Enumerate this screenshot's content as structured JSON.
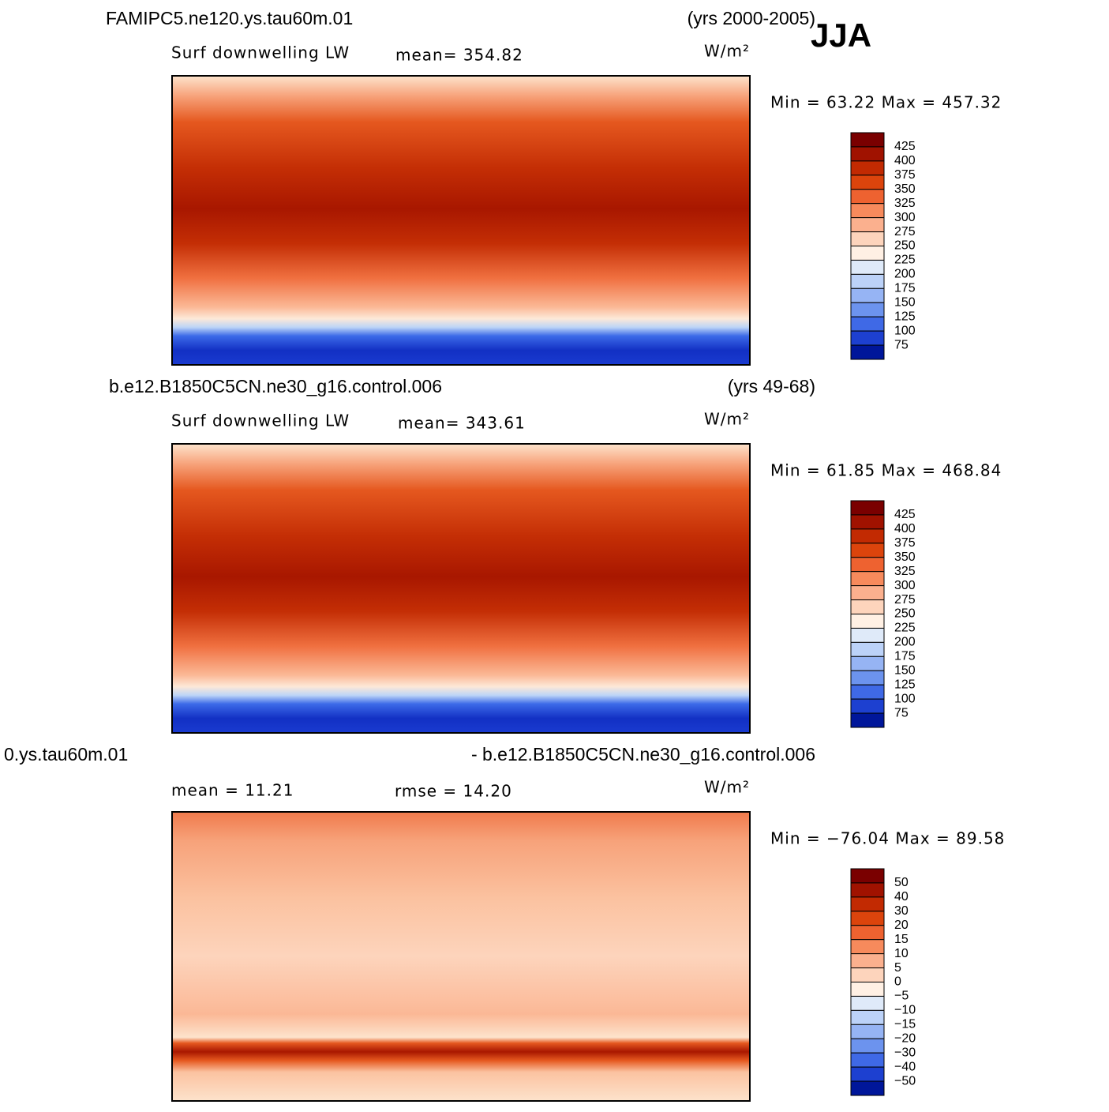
{
  "header": {
    "season": "JJA"
  },
  "palette": [
    "#7a0000",
    "#a01200",
    "#c22a02",
    "#dc440c",
    "#ee6230",
    "#f78a5c",
    "#fbb08e",
    "#fdd4bc",
    "#fff0e4",
    "#dfeaf9",
    "#bcd2f8",
    "#96b4f4",
    "#6c93ee",
    "#3f69e6",
    "#1d40d0",
    "#00169a"
  ],
  "panels": [
    {
      "case": "FAMIPC5.ne120.ys.tau60m.01",
      "years": "(yrs 2000-2005)",
      "stat_left": "Surf downwelling LW",
      "stat_mid": "mean= 354.82",
      "units": "W/m²",
      "minmax": "Min =  63.22 Max = 457.32",
      "colorbar": [
        "425",
        "400",
        "375",
        "350",
        "325",
        "300",
        "275",
        "250",
        "225",
        "200",
        "175",
        "150",
        "125",
        "100",
        "75"
      ]
    },
    {
      "case": "b.e12.B1850C5CN.ne30_g16.control.006",
      "years": "(yrs 49-68)",
      "stat_left": "Surf downwelling LW",
      "stat_mid": "mean= 343.61",
      "units": "W/m²",
      "minmax": "Min =  61.85 Max = 468.84",
      "colorbar": [
        "425",
        "400",
        "375",
        "350",
        "325",
        "300",
        "275",
        "250",
        "225",
        "200",
        "175",
        "150",
        "125",
        "100",
        "75"
      ]
    },
    {
      "case": "0.ys.tau60m.01",
      "years": "- b.e12.B1850C5CN.ne30_g16.control.006",
      "stat_left": "mean =   11.21",
      "stat_mid": "rmse =   14.20",
      "units": "W/m²",
      "minmax": "Min = −76.04 Max =   89.58",
      "colorbar": [
        "50",
        "40",
        "30",
        "20",
        "15",
        "10",
        "5",
        "0",
        "−5",
        "−10",
        "−15",
        "−20",
        "−30",
        "−40",
        "−50"
      ]
    }
  ]
}
